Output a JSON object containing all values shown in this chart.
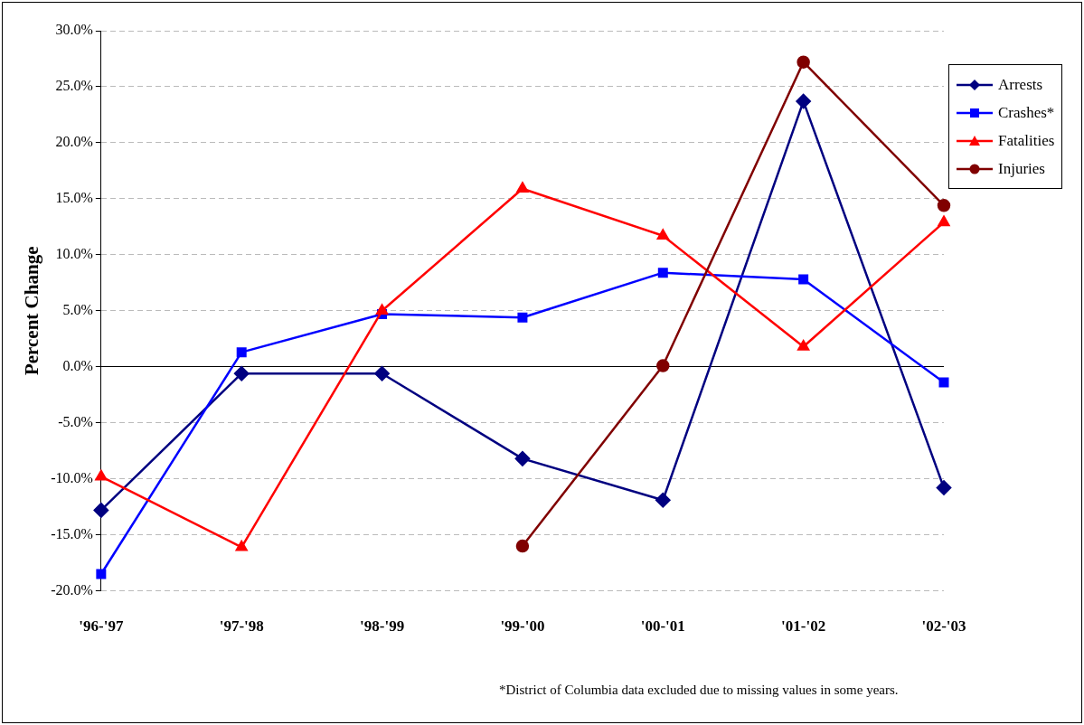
{
  "chart_data": {
    "type": "line",
    "ylabel": "Percent Change",
    "categories": [
      "'96-'97",
      "'97-'98",
      "'98-'99",
      "'99-'00",
      "'00-'01",
      "'01-'02",
      "'02-'03"
    ],
    "series": [
      {
        "name": "Arrests",
        "color": "#000080",
        "marker": "diamond",
        "values": [
          -12.8,
          -0.6,
          -0.6,
          -8.2,
          -11.9,
          23.7,
          -10.8
        ]
      },
      {
        "name": "Crashes*",
        "color": "#0000ff",
        "marker": "square",
        "values": [
          -18.5,
          1.3,
          4.7,
          4.4,
          8.4,
          7.8,
          -1.4
        ]
      },
      {
        "name": "Fatalities",
        "color": "#ff0000",
        "marker": "triangle",
        "values": [
          -9.8,
          -16.1,
          5.0,
          15.9,
          11.7,
          1.8,
          12.9
        ]
      },
      {
        "name": "Injuries",
        "color": "#800000",
        "marker": "circle",
        "values": [
          null,
          null,
          null,
          -16.0,
          0.1,
          27.2,
          14.4
        ]
      }
    ],
    "ylim": [
      -20,
      30
    ],
    "yticks": [
      {
        "value": -20,
        "label": "-20.0%"
      },
      {
        "value": -15,
        "label": "-15.0%"
      },
      {
        "value": -10,
        "label": "-10.0%"
      },
      {
        "value": -5,
        "label": "-5.0%"
      },
      {
        "value": 0,
        "label": "0.0%"
      },
      {
        "value": 5,
        "label": "5.0%"
      },
      {
        "value": 10,
        "label": "10.0%"
      },
      {
        "value": 15,
        "label": "15.0%"
      },
      {
        "value": 20,
        "label": "20.0%"
      },
      {
        "value": 25,
        "label": "25.0%"
      },
      {
        "value": 30,
        "label": "30.0%"
      }
    ],
    "grid": "y",
    "legend": "top right",
    "line_style": "solid",
    "annotations": [
      "*District of Columbia data excluded due to missing values in some years."
    ]
  }
}
